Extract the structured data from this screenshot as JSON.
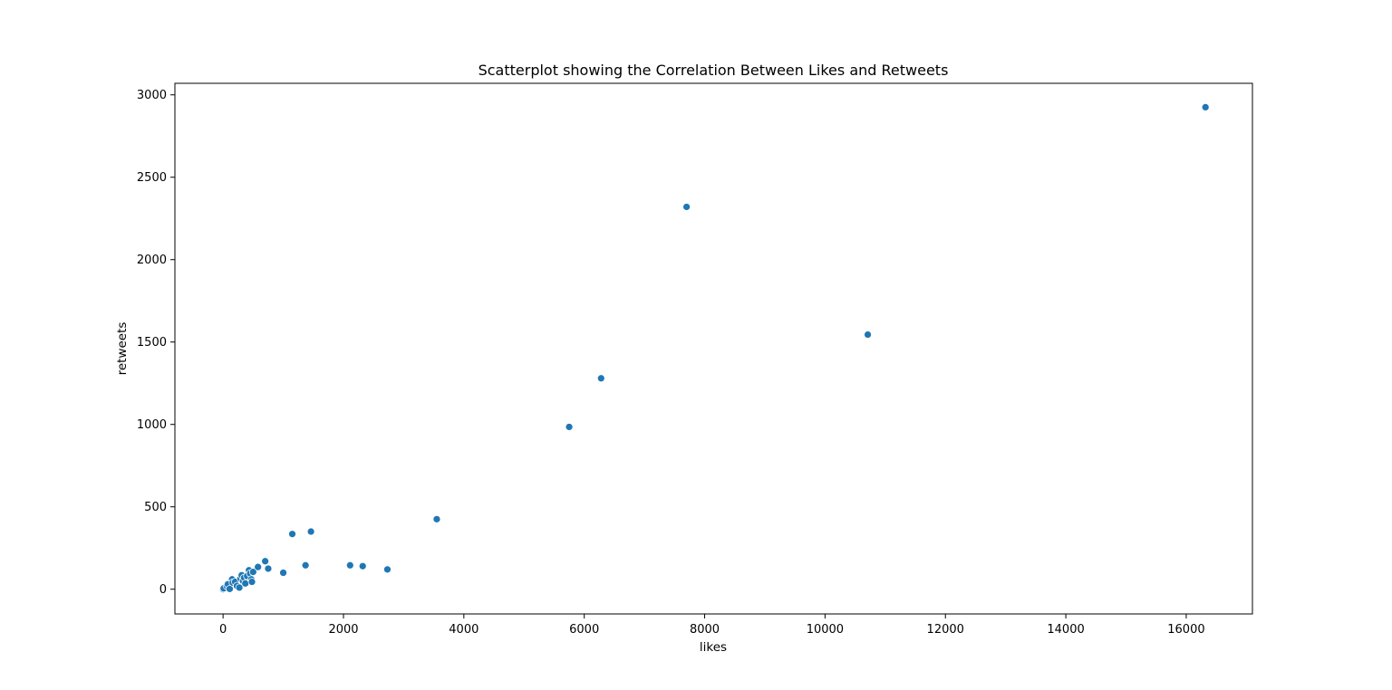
{
  "chart_data": {
    "type": "scatter",
    "title": "Scatterplot showing the Correlation Between Likes and Retweets",
    "xlabel": "likes",
    "ylabel": "retweets",
    "xlim": [
      -800,
      17100
    ],
    "ylim": [
      -150,
      3070
    ],
    "xticks": [
      0,
      2000,
      4000,
      6000,
      8000,
      10000,
      12000,
      14000,
      16000
    ],
    "yticks": [
      0,
      500,
      1000,
      1500,
      2000,
      2500,
      3000
    ],
    "grid": false,
    "marker_color": "#1f77b4",
    "marker_edge_color": "#ffffff",
    "points": [
      {
        "x": 0,
        "y": 0
      },
      {
        "x": 10,
        "y": 5
      },
      {
        "x": 60,
        "y": 20
      },
      {
        "x": 80,
        "y": 30
      },
      {
        "x": 110,
        "y": 2
      },
      {
        "x": 150,
        "y": 60
      },
      {
        "x": 160,
        "y": 40
      },
      {
        "x": 200,
        "y": 45
      },
      {
        "x": 230,
        "y": 20
      },
      {
        "x": 270,
        "y": 10
      },
      {
        "x": 290,
        "y": 65
      },
      {
        "x": 310,
        "y": 85
      },
      {
        "x": 330,
        "y": 50
      },
      {
        "x": 350,
        "y": 70
      },
      {
        "x": 370,
        "y": 35
      },
      {
        "x": 400,
        "y": 80
      },
      {
        "x": 430,
        "y": 115
      },
      {
        "x": 450,
        "y": 95
      },
      {
        "x": 470,
        "y": 60
      },
      {
        "x": 480,
        "y": 45
      },
      {
        "x": 500,
        "y": 105
      },
      {
        "x": 580,
        "y": 135
      },
      {
        "x": 700,
        "y": 170
      },
      {
        "x": 750,
        "y": 125
      },
      {
        "x": 1000,
        "y": 100
      },
      {
        "x": 1150,
        "y": 335
      },
      {
        "x": 1370,
        "y": 145
      },
      {
        "x": 1460,
        "y": 350
      },
      {
        "x": 2110,
        "y": 145
      },
      {
        "x": 2320,
        "y": 140
      },
      {
        "x": 2730,
        "y": 120
      },
      {
        "x": 3550,
        "y": 425
      },
      {
        "x": 5750,
        "y": 985
      },
      {
        "x": 6280,
        "y": 1280
      },
      {
        "x": 7700,
        "y": 2320
      },
      {
        "x": 10710,
        "y": 1545
      },
      {
        "x": 16320,
        "y": 2925
      }
    ]
  }
}
